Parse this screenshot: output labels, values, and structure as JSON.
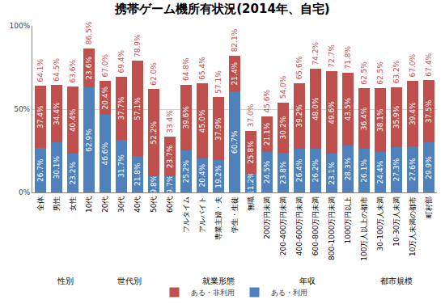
{
  "chart_data": {
    "type": "bar",
    "title": "携帯ゲーム機所有状況(2014年、自宅)",
    "categories": [
      "全体",
      "男性",
      "女性",
      "10代",
      "20代",
      "30代",
      "40代",
      "50代",
      "60代",
      "フルタイム",
      "アルバイト",
      "専業主婦・夫",
      "学生・生徒",
      "無職",
      "200万円未満",
      "200-400万円未満",
      "400-600万円未満",
      "600-800万円未満",
      "800-1000万円未満",
      "1000万円以上",
      "100万人以上の都市",
      "30-100万人未満",
      "10-30万人未満",
      "10万人未満の都市",
      "町村部"
    ],
    "series": [
      {
        "name": "ある・利用",
        "color": "#4f81bd",
        "values": [
          26.7,
          30.1,
          23.2,
          62.9,
          46.6,
          31.7,
          21.8,
          9.8,
          9.7,
          25.2,
          20.4,
          19.2,
          60.7,
          11.2,
          24.5,
          23.8,
          26.4,
          26.2,
          23.1,
          28.3,
          26.1,
          24.4,
          27.3,
          27.6,
          29.9
        ],
        "value_labels": [
          "26.7%",
          "30.1%",
          "23.2%",
          "62.9%",
          "46.6%",
          "31.7%",
          "21.8%",
          "9.8%",
          "9.7%",
          "25.2%",
          "20.4%",
          "19.2%",
          "60.7%",
          "11.2%",
          "24.5%",
          "23.8%",
          "26.4%",
          "26.2%",
          "23.1%",
          "28.3%",
          "26.1%",
          "24.4%",
          "27.3%",
          "27.6%",
          "29.9%"
        ]
      },
      {
        "name": "ある・非利用",
        "color": "#c0504d",
        "values": [
          37.4,
          34.4,
          40.4,
          23.6,
          20.4,
          37.7,
          57.1,
          52.2,
          23.7,
          39.6,
          45.0,
          37.9,
          21.4,
          25.8,
          21.1,
          30.2,
          39.2,
          48.0,
          49.6,
          43.5,
          36.4,
          38.1,
          35.9,
          39.4,
          37.5
        ],
        "value_labels": [
          "37.4%",
          "34.4%",
          "40.4%",
          "23.6%",
          "20.4%",
          "37.7%",
          "57.1%",
          "52.2%",
          "23.7%",
          "39.6%",
          "45.0%",
          "37.9%",
          "21.4%",
          "25.8%",
          "21.1%",
          "30.2%",
          "39.2%",
          "48.0%",
          "49.6%",
          "43.5%",
          "36.4%",
          "38.1%",
          "35.9%",
          "39.4%",
          "37.5%"
        ]
      }
    ],
    "totals": [
      64.1,
      64.5,
      63.6,
      86.5,
      67.0,
      69.4,
      78.9,
      62.0,
      33.4,
      64.8,
      65.4,
      57.1,
      82.1,
      37.0,
      45.6,
      54.0,
      65.6,
      74.2,
      72.7,
      71.8,
      62.5,
      62.5,
      63.2,
      67.0,
      67.4
    ],
    "total_labels": [
      "64.1%",
      "64.5%",
      "63.6%",
      "86.5%",
      "67.0%",
      "69.4%",
      "78.9%",
      "62.0%",
      "33.4%",
      "64.8%",
      "65.4%",
      "57.1%",
      "82.1%",
      "37.0%",
      "45.6%",
      "54.0%",
      "65.6%",
      "74.2%",
      "72.7%",
      "71.8%",
      "62.5%",
      "62.5%",
      "63.2%",
      "67.0%",
      "67.4%"
    ],
    "total_color": "#c0504d",
    "groups": [
      {
        "label": "性別",
        "categories": [
          "男性",
          "女性"
        ]
      },
      {
        "label": "世代別",
        "categories": [
          "10代",
          "20代",
          "30代",
          "40代",
          "50代",
          "60代"
        ]
      },
      {
        "label": "就業形態",
        "categories": [
          "フルタイム",
          "アルバイト",
          "専業主婦・夫",
          "学生・生徒",
          "無職"
        ]
      },
      {
        "label": "年収",
        "categories": [
          "200万円未満",
          "200-400万円未満",
          "400-600万円未満",
          "600-800万円未満",
          "800-1000万円未満",
          "1000万円以上"
        ]
      },
      {
        "label": "都市規模",
        "categories": [
          "100万人以上の都市",
          "30-100万人未満",
          "10-30万人未満",
          "10万人未満の都市",
          "町村部"
        ]
      }
    ],
    "ylim": [
      0,
      100
    ],
    "yticks": [
      {
        "value": 0,
        "label": "0%"
      },
      {
        "value": 50,
        "label": "50%"
      },
      {
        "value": 100,
        "label": "100%"
      }
    ],
    "grid": true,
    "stacked": true,
    "data_labels": true,
    "legend": "bottom"
  }
}
